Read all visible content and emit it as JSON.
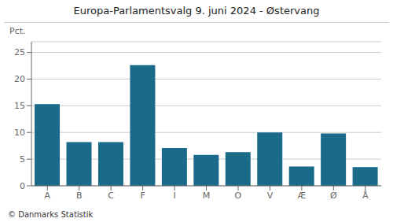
{
  "chart_data": {
    "type": "bar",
    "title": "Europa-Parlamentsvalg 9. juni 2024 - Østervang",
    "categories": [
      "A",
      "B",
      "C",
      "F",
      "I",
      "M",
      "O",
      "V",
      "Æ",
      "Ø",
      "Å"
    ],
    "values": [
      15.3,
      8.2,
      8.2,
      22.6,
      7.1,
      5.8,
      6.3,
      10.0,
      3.6,
      9.8,
      3.5
    ],
    "color": "#1a6b8a",
    "ylabel": "Pct.",
    "ylim": [
      0,
      27
    ],
    "yticks": [
      0,
      5,
      10,
      15,
      20,
      25
    ],
    "grid": true,
    "footer": "© Danmarks Statistik"
  }
}
